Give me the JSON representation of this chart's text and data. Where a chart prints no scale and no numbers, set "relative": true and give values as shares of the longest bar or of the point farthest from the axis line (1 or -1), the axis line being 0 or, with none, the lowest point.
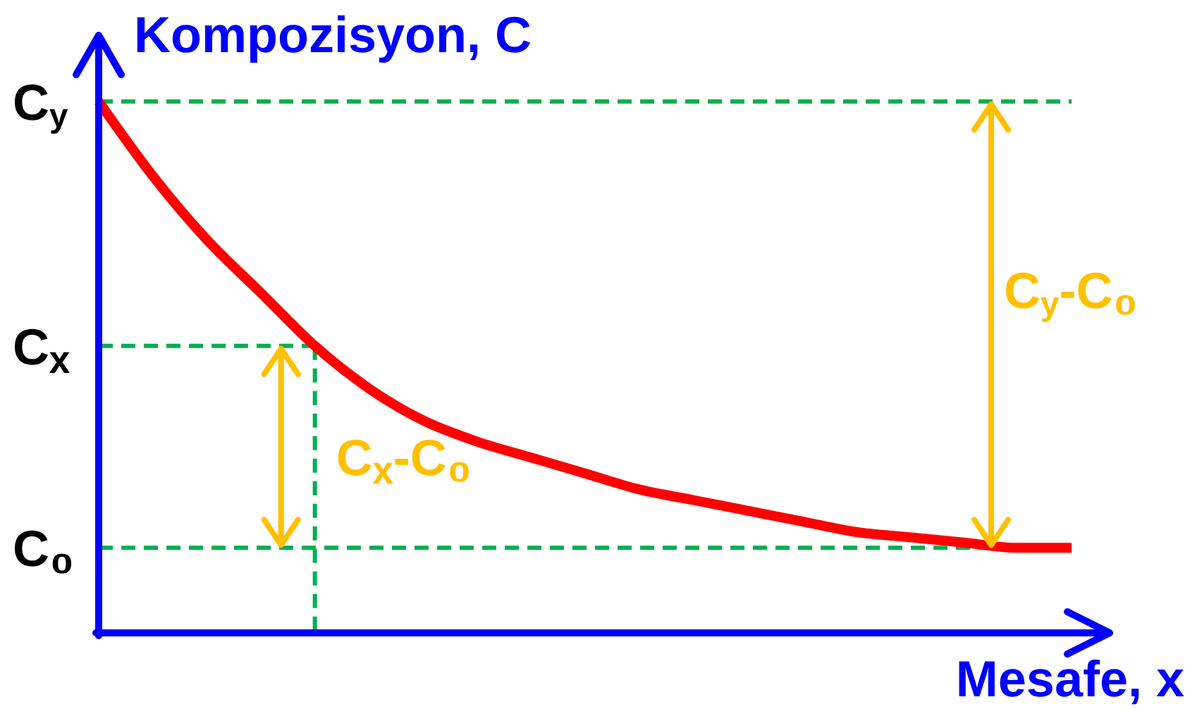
{
  "chart_data": {
    "type": "line",
    "relative": true,
    "ylabel": "Kompozisyon, C",
    "xlabel": "Mesafe, x",
    "categories": [
      null,
      null,
      null,
      null,
      null,
      null,
      null,
      null,
      null,
      null,
      null,
      null,
      null,
      null,
      null,
      null,
      null,
      null,
      null
    ],
    "series": [
      {
        "color": "#ff0000",
        "values": [
          1,
          0.86,
          0.74,
          0.64,
          0.54,
          0.46,
          0.4,
          0.36,
          0.33,
          0.3,
          0.27,
          0.25,
          0.23,
          0.21,
          0.19,
          0.18,
          0.17,
          0.16,
          0.16
        ]
      }
    ],
    "ref_lines": [
      {
        "axis": "y",
        "value": 1,
        "label": "C$_{y}$",
        "color": "#00b050",
        "line_style": "dashed"
      },
      {
        "axis": "y",
        "value": 0.54,
        "label": "Cₓ",
        "color": "#00b050",
        "line_style": "dashed"
      },
      {
        "axis": "y",
        "value": 0.16,
        "label": "C₀",
        "color": "#00b050",
        "line_style": "dashed"
      }
    ],
    "annotations": [
      "C$_{y}$-C₀",
      "Cₓ-C₀"
    ]
  }
}
